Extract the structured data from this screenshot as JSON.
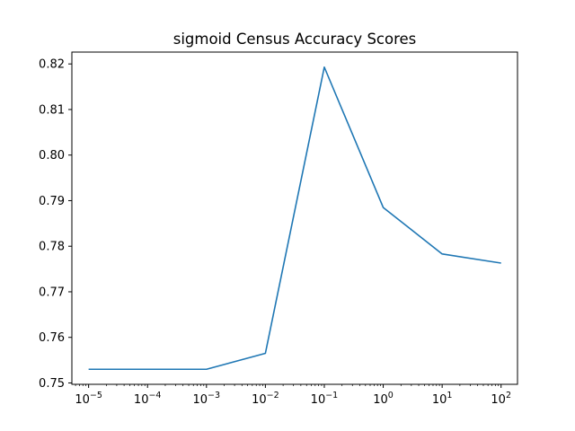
{
  "chart_data": {
    "type": "line",
    "title": "sigmoid Census Accuracy Scores",
    "xlabel": "",
    "ylabel": "",
    "x_scale": "log",
    "x": [
      1e-05,
      0.0001,
      0.001,
      0.01,
      0.1,
      1,
      10,
      100
    ],
    "series": [
      {
        "color": "#1f77b4",
        "values": [
          0.753,
          0.753,
          0.753,
          0.7565,
          0.8193,
          0.7885,
          0.7783,
          0.7763
        ]
      }
    ],
    "x_ticks": [
      {
        "value": 1e-05,
        "base": "10",
        "exp": "−5"
      },
      {
        "value": 0.0001,
        "base": "10",
        "exp": "−4"
      },
      {
        "value": 0.001,
        "base": "10",
        "exp": "−3"
      },
      {
        "value": 0.01,
        "base": "10",
        "exp": "−2"
      },
      {
        "value": 0.1,
        "base": "10",
        "exp": "−1"
      },
      {
        "value": 1,
        "base": "10",
        "exp": "0"
      },
      {
        "value": 10,
        "base": "10",
        "exp": "1"
      },
      {
        "value": 100,
        "base": "10",
        "exp": "2"
      }
    ],
    "y_ticks": [
      {
        "value": 0.75,
        "label": "0.75"
      },
      {
        "value": 0.76,
        "label": "0.76"
      },
      {
        "value": 0.77,
        "label": "0.77"
      },
      {
        "value": 0.78,
        "label": "0.78"
      },
      {
        "value": 0.79,
        "label": "0.79"
      },
      {
        "value": 0.8,
        "label": "0.80"
      },
      {
        "value": 0.81,
        "label": "0.81"
      },
      {
        "value": 0.82,
        "label": "0.82"
      }
    ],
    "xlim": [
      5.2e-06,
      190
    ],
    "ylim": [
      0.7497,
      0.8226
    ],
    "grid": false,
    "legend": "none"
  }
}
